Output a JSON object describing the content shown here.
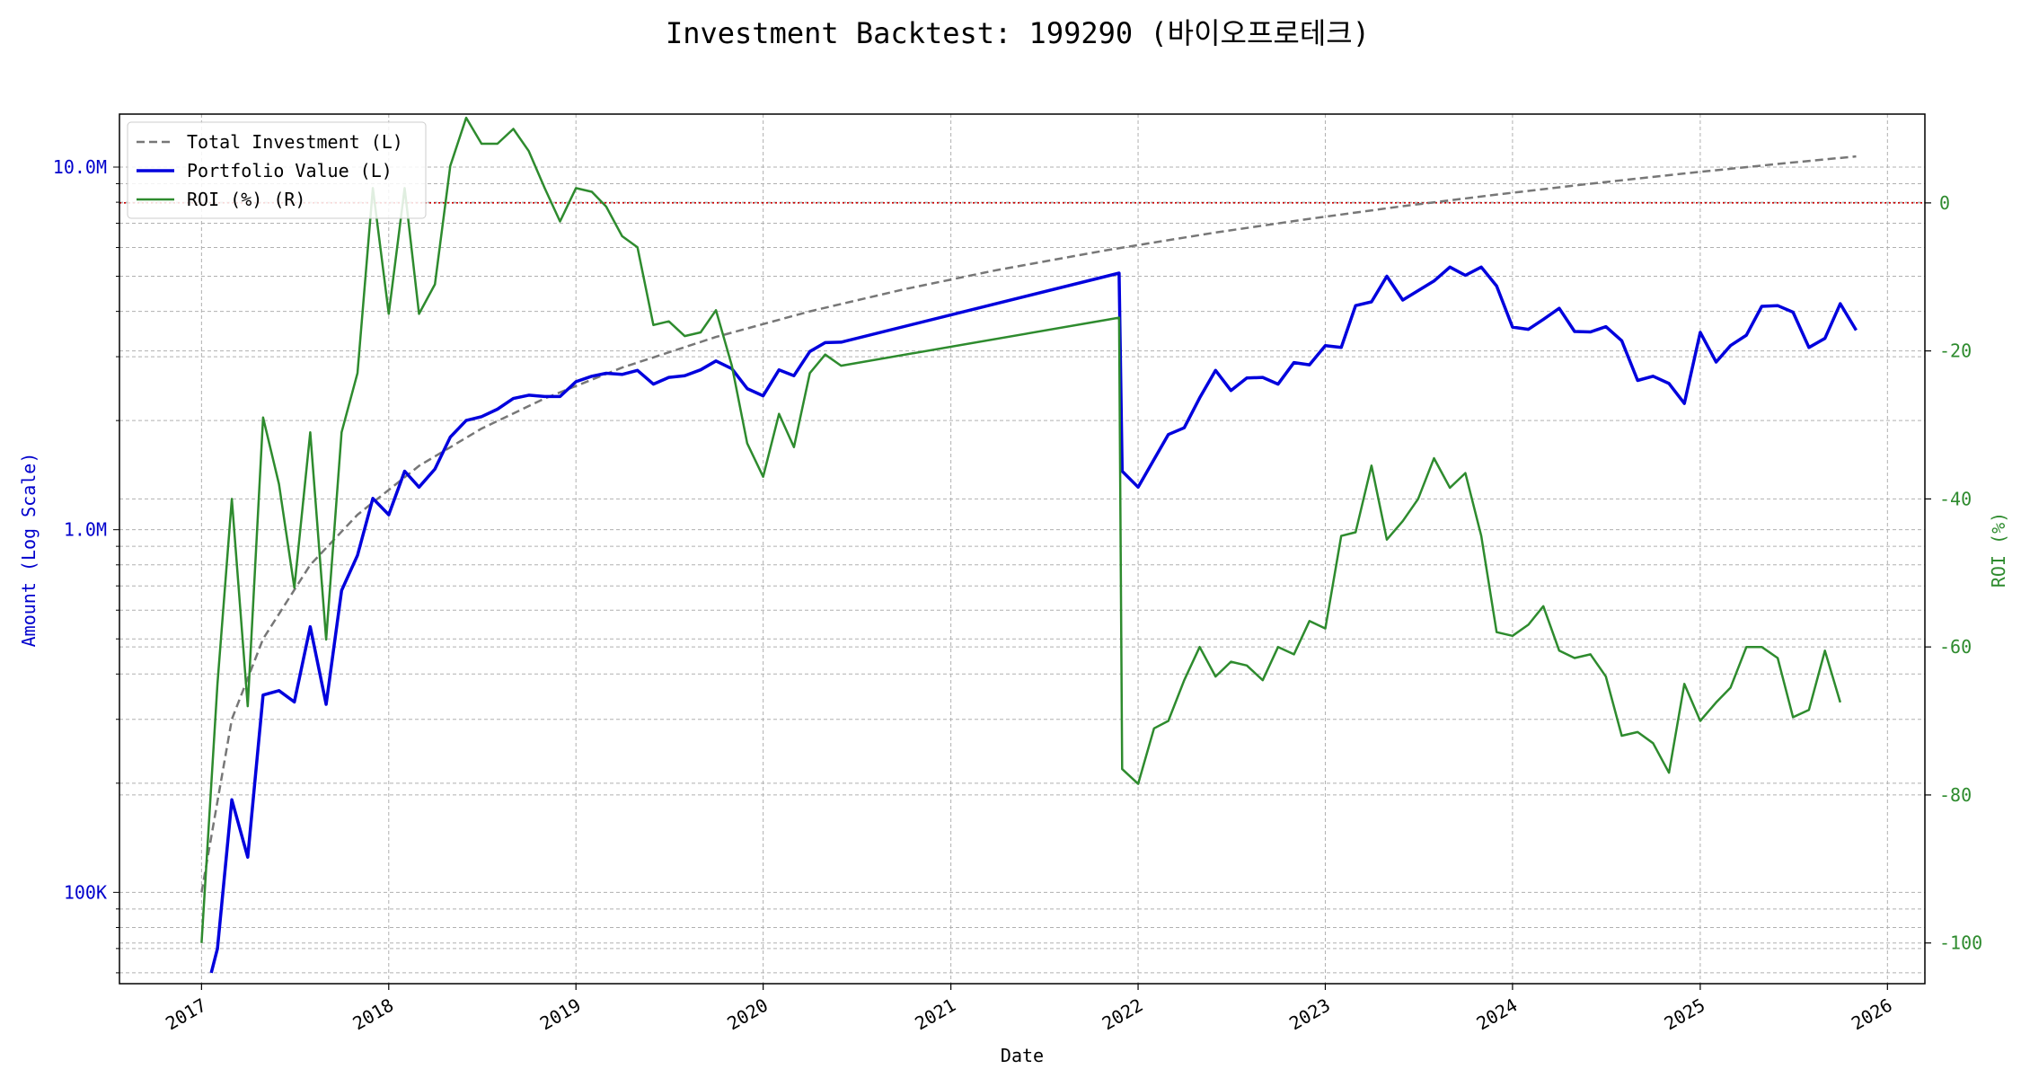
{
  "chart_data": {
    "type": "line",
    "title": "Investment Backtest: 199290 (바이오프로테크)",
    "xlabel": "Date",
    "ylabel_left": "Amount (Log Scale)",
    "ylabel_right": "ROI (%)",
    "left_axis": {
      "scale": "log",
      "range": [
        56000,
        14000000
      ],
      "ticks": [
        {
          "value": 100000,
          "label": "100K"
        },
        {
          "value": 1000000,
          "label": "1.0M"
        },
        {
          "value": 10000000,
          "label": "10.0M"
        }
      ],
      "color": "#0000cc"
    },
    "right_axis": {
      "scale": "linear",
      "range": [
        -105.5,
        12
      ],
      "ticks": [
        0,
        -20,
        -40,
        -60,
        -80,
        -100
      ],
      "color": "#2e8b2e"
    },
    "x_axis": {
      "type": "date",
      "range": [
        "2016-07-25",
        "2026-03-15"
      ],
      "ticks": [
        "2017",
        "2018",
        "2019",
        "2020",
        "2021",
        "2022",
        "2023",
        "2024",
        "2025",
        "2026"
      ]
    },
    "grid": true,
    "legend_position": "top-left",
    "reference_line": {
      "axis": "right",
      "value": 0,
      "style": "dotted",
      "color": "#cc0000"
    },
    "series": [
      {
        "name": "Total Investment (L)",
        "axis": "left",
        "style": "dashed",
        "color": "#777777",
        "points": [
          [
            "2017-01-01",
            100000
          ],
          [
            "2017-03-01",
            300000
          ],
          [
            "2017-05-01",
            500000
          ],
          [
            "2017-08-01",
            800000
          ],
          [
            "2017-11-01",
            1100000
          ],
          [
            "2018-03-01",
            1500000
          ],
          [
            "2018-07-01",
            1900000
          ],
          [
            "2018-11-01",
            2300000
          ],
          [
            "2019-04-01",
            2800000
          ],
          [
            "2019-10-01",
            3400000
          ],
          [
            "2020-04-01",
            4000000
          ],
          [
            "2020-10-01",
            4600000
          ],
          [
            "2021-04-01",
            5200000
          ],
          [
            "2021-11-01",
            5900000
          ],
          [
            "2022-06-01",
            6600000
          ],
          [
            "2022-12-01",
            7200000
          ],
          [
            "2023-06-01",
            7800000
          ],
          [
            "2023-12-01",
            8400000
          ],
          [
            "2024-06-01",
            9000000
          ],
          [
            "2024-12-01",
            9600000
          ],
          [
            "2025-06-01",
            10200000
          ],
          [
            "2025-11-01",
            10700000
          ]
        ]
      },
      {
        "name": "Portfolio Value (L)",
        "axis": "left",
        "style": "solid",
        "color": "#0000dd",
        "points": [
          [
            "2017-01-20",
            60000
          ],
          [
            "2017-02-01",
            70000
          ],
          [
            "2017-03-01",
            180000
          ],
          [
            "2017-04-01",
            125000
          ],
          [
            "2017-05-01",
            350000
          ],
          [
            "2017-06-01",
            360000
          ],
          [
            "2017-07-01",
            335000
          ],
          [
            "2017-08-01",
            540000
          ],
          [
            "2017-09-01",
            330000
          ],
          [
            "2017-10-01",
            680000
          ],
          [
            "2017-11-01",
            850000
          ],
          [
            "2017-12-01",
            1220000
          ],
          [
            "2018-01-01",
            1100000
          ],
          [
            "2018-02-01",
            1450000
          ],
          [
            "2018-03-01",
            1310000
          ],
          [
            "2018-04-01",
            1470000
          ],
          [
            "2018-05-01",
            1800000
          ],
          [
            "2018-06-01",
            2000000
          ],
          [
            "2018-07-01",
            2050000
          ],
          [
            "2018-08-01",
            2150000
          ],
          [
            "2018-09-01",
            2300000
          ],
          [
            "2018-10-01",
            2350000
          ],
          [
            "2018-11-01",
            2330000
          ],
          [
            "2018-12-01",
            2330000
          ],
          [
            "2019-01-01",
            2560000
          ],
          [
            "2019-02-01",
            2650000
          ],
          [
            "2019-03-01",
            2700000
          ],
          [
            "2019-04-01",
            2680000
          ],
          [
            "2019-05-01",
            2750000
          ],
          [
            "2019-06-01",
            2520000
          ],
          [
            "2019-07-01",
            2630000
          ],
          [
            "2019-08-01",
            2660000
          ],
          [
            "2019-09-01",
            2760000
          ],
          [
            "2019-10-01",
            2920000
          ],
          [
            "2019-11-01",
            2780000
          ],
          [
            "2019-12-01",
            2450000
          ],
          [
            "2020-01-01",
            2340000
          ],
          [
            "2020-02-01",
            2760000
          ],
          [
            "2020-03-01",
            2660000
          ],
          [
            "2020-04-01",
            3100000
          ],
          [
            "2020-05-01",
            3280000
          ],
          [
            "2020-06-01",
            3290000
          ],
          [
            "2021-11-25",
            5100000
          ],
          [
            "2021-12-01",
            1450000
          ],
          [
            "2022-01-01",
            1310000
          ],
          [
            "2022-03-01",
            1830000
          ],
          [
            "2022-04-01",
            1910000
          ],
          [
            "2022-05-01",
            2310000
          ],
          [
            "2022-06-01",
            2750000
          ],
          [
            "2022-07-01",
            2420000
          ],
          [
            "2022-08-01",
            2620000
          ],
          [
            "2022-09-01",
            2630000
          ],
          [
            "2022-10-01",
            2520000
          ],
          [
            "2022-11-01",
            2890000
          ],
          [
            "2022-12-01",
            2850000
          ],
          [
            "2023-01-01",
            3220000
          ],
          [
            "2023-02-01",
            3180000
          ],
          [
            "2023-03-01",
            4150000
          ],
          [
            "2023-04-01",
            4250000
          ],
          [
            "2023-05-01",
            5000000
          ],
          [
            "2023-06-01",
            4300000
          ],
          [
            "2023-08-01",
            4850000
          ],
          [
            "2023-09-01",
            5300000
          ],
          [
            "2023-10-01",
            5030000
          ],
          [
            "2023-11-01",
            5300000
          ],
          [
            "2023-12-01",
            4700000
          ],
          [
            "2024-01-01",
            3620000
          ],
          [
            "2024-02-01",
            3570000
          ],
          [
            "2024-03-01",
            3800000
          ],
          [
            "2024-04-01",
            4080000
          ],
          [
            "2024-05-01",
            3520000
          ],
          [
            "2024-06-01",
            3510000
          ],
          [
            "2024-07-01",
            3630000
          ],
          [
            "2024-08-01",
            3320000
          ],
          [
            "2024-09-01",
            2580000
          ],
          [
            "2024-10-01",
            2650000
          ],
          [
            "2024-11-01",
            2530000
          ],
          [
            "2024-12-01",
            2230000
          ],
          [
            "2025-01-01",
            3500000
          ],
          [
            "2025-02-01",
            2900000
          ],
          [
            "2025-03-01",
            3220000
          ],
          [
            "2025-04-01",
            3440000
          ],
          [
            "2025-05-01",
            4130000
          ],
          [
            "2025-06-01",
            4150000
          ],
          [
            "2025-07-01",
            3980000
          ],
          [
            "2025-08-01",
            3180000
          ],
          [
            "2025-09-01",
            3370000
          ],
          [
            "2025-10-01",
            4200000
          ],
          [
            "2025-11-01",
            3550000
          ]
        ]
      },
      {
        "name": "ROI (%) (R)",
        "axis": "right",
        "style": "solid",
        "color": "#2e8b2e",
        "points": [
          [
            "2017-01-01",
            -100
          ],
          [
            "2017-02-01",
            -65
          ],
          [
            "2017-03-01",
            -40
          ],
          [
            "2017-04-01",
            -68
          ],
          [
            "2017-05-01",
            -29
          ],
          [
            "2017-06-01",
            -38
          ],
          [
            "2017-07-01",
            -52
          ],
          [
            "2017-08-01",
            -31
          ],
          [
            "2017-09-01",
            -59
          ],
          [
            "2017-10-01",
            -31
          ],
          [
            "2017-11-01",
            -23
          ],
          [
            "2017-12-01",
            2
          ],
          [
            "2018-01-01",
            -15
          ],
          [
            "2018-02-01",
            2
          ],
          [
            "2018-03-01",
            -15
          ],
          [
            "2018-04-01",
            -11
          ],
          [
            "2018-05-01",
            5
          ],
          [
            "2018-06-01",
            11.5
          ],
          [
            "2018-07-01",
            8
          ],
          [
            "2018-08-01",
            8
          ],
          [
            "2018-09-01",
            10
          ],
          [
            "2018-10-01",
            7
          ],
          [
            "2018-11-01",
            2
          ],
          [
            "2018-12-01",
            -2.5
          ],
          [
            "2019-01-01",
            2
          ],
          [
            "2019-02-01",
            1.5
          ],
          [
            "2019-03-01",
            -0.5
          ],
          [
            "2019-04-01",
            -4.5
          ],
          [
            "2019-05-01",
            -6
          ],
          [
            "2019-06-01",
            -16.5
          ],
          [
            "2019-07-01",
            -16
          ],
          [
            "2019-08-01",
            -18
          ],
          [
            "2019-09-01",
            -17.5
          ],
          [
            "2019-10-01",
            -14.5
          ],
          [
            "2019-11-01",
            -22
          ],
          [
            "2019-12-01",
            -32.5
          ],
          [
            "2020-01-01",
            -37
          ],
          [
            "2020-02-01",
            -28.5
          ],
          [
            "2020-03-01",
            -33
          ],
          [
            "2020-04-01",
            -23
          ],
          [
            "2020-05-01",
            -20.5
          ],
          [
            "2020-06-01",
            -22
          ],
          [
            "2021-11-25",
            -15.5
          ],
          [
            "2021-12-01",
            -76.5
          ],
          [
            "2022-01-01",
            -78.5
          ],
          [
            "2022-02-01",
            -71
          ],
          [
            "2022-03-01",
            -70
          ],
          [
            "2022-04-01",
            -64.5
          ],
          [
            "2022-05-01",
            -60
          ],
          [
            "2022-06-01",
            -64
          ],
          [
            "2022-07-01",
            -62
          ],
          [
            "2022-08-01",
            -62.5
          ],
          [
            "2022-09-01",
            -64.5
          ],
          [
            "2022-10-01",
            -60
          ],
          [
            "2022-11-01",
            -61
          ],
          [
            "2022-12-01",
            -56.5
          ],
          [
            "2023-01-01",
            -57.5
          ],
          [
            "2023-02-01",
            -45
          ],
          [
            "2023-03-01",
            -44.5
          ],
          [
            "2023-04-01",
            -35.5
          ],
          [
            "2023-05-01",
            -45.5
          ],
          [
            "2023-06-01",
            -43
          ],
          [
            "2023-07-01",
            -40
          ],
          [
            "2023-08-01",
            -34.5
          ],
          [
            "2023-09-01",
            -38.5
          ],
          [
            "2023-10-01",
            -36.5
          ],
          [
            "2023-11-01",
            -45
          ],
          [
            "2023-12-01",
            -58
          ],
          [
            "2024-01-01",
            -58.5
          ],
          [
            "2024-02-01",
            -57
          ],
          [
            "2024-03-01",
            -54.5
          ],
          [
            "2024-04-01",
            -60.5
          ],
          [
            "2024-05-01",
            -61.5
          ],
          [
            "2024-06-01",
            -61
          ],
          [
            "2024-07-01",
            -64
          ],
          [
            "2024-08-01",
            -72
          ],
          [
            "2024-09-01",
            -71.5
          ],
          [
            "2024-10-01",
            -73
          ],
          [
            "2024-11-01",
            -77
          ],
          [
            "2024-12-01",
            -65
          ],
          [
            "2025-01-01",
            -70
          ],
          [
            "2025-02-01",
            -67.5
          ],
          [
            "2025-03-01",
            -65.5
          ],
          [
            "2025-04-01",
            -60
          ],
          [
            "2025-05-01",
            -60
          ],
          [
            "2025-06-01",
            -61.5
          ],
          [
            "2025-07-01",
            -69.5
          ],
          [
            "2025-08-01",
            -68.5
          ],
          [
            "2025-09-01",
            -60.5
          ],
          [
            "2025-10-01",
            -67.5
          ]
        ]
      }
    ]
  }
}
